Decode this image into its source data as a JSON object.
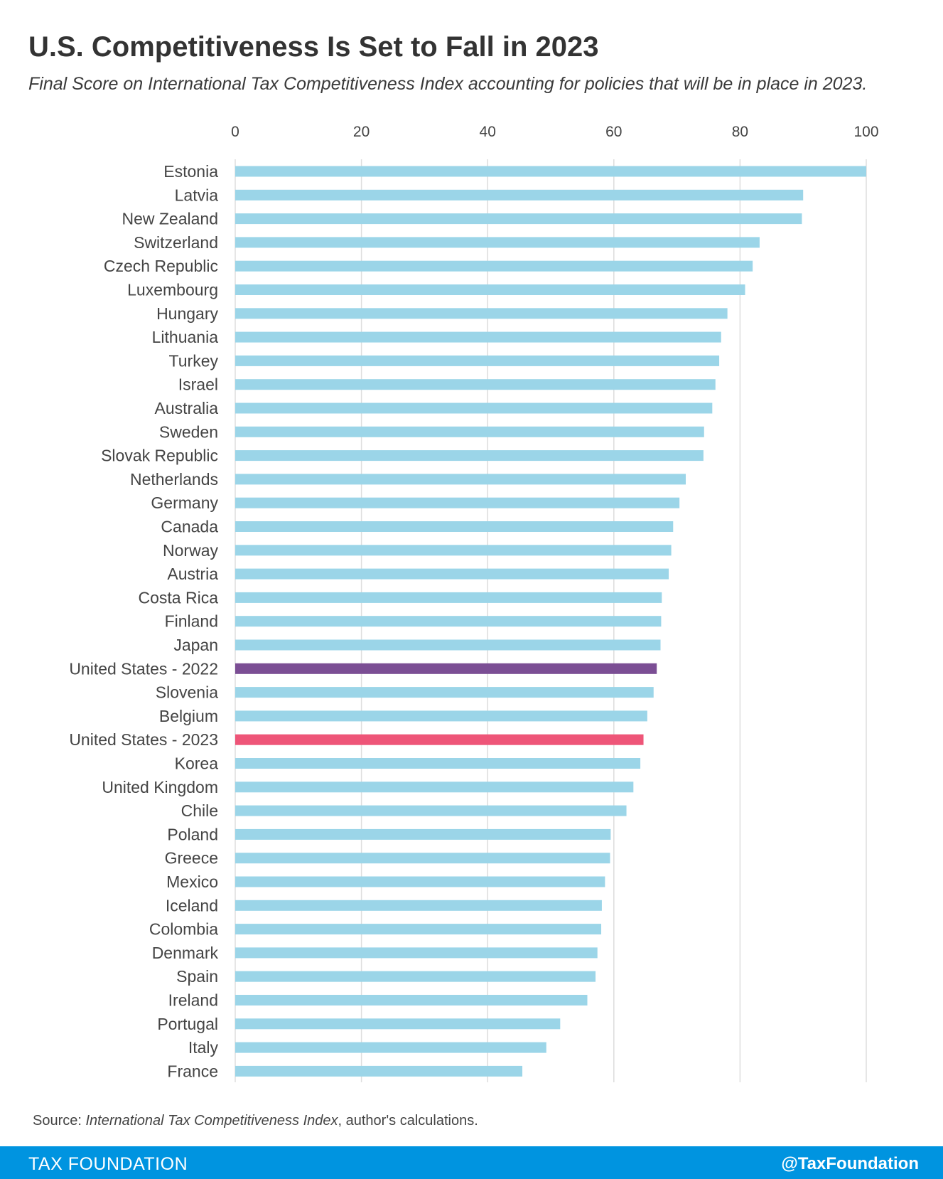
{
  "title": "U.S. Competitiveness Is Set to Fall in 2023",
  "subtitle": "Final Score on International Tax Competitiveness Index accounting for policies that will be in place in 2023.",
  "source": {
    "prefix": "Source: ",
    "italic": "International Tax Competitiveness Index",
    "suffix": ", author's calculations."
  },
  "footer": {
    "brand": "TAX FOUNDATION",
    "handle": "@TaxFoundation"
  },
  "colors": {
    "default_bar": "#9bd5e8",
    "us_2022": "#7b4e94",
    "us_2023": "#ee5578",
    "gridline": "#dddddd"
  },
  "chart_data": {
    "type": "bar",
    "orientation": "horizontal",
    "xlim": [
      0,
      100
    ],
    "xticks": [
      0,
      20,
      40,
      60,
      80,
      100
    ],
    "grid": true,
    "categories": [
      "Estonia",
      "Latvia",
      "New Zealand",
      "Switzerland",
      "Czech Republic",
      "Luxembourg",
      "Hungary",
      "Lithuania",
      "Turkey",
      "Israel",
      "Australia",
      "Sweden",
      "Slovak Republic",
      "Netherlands",
      "Germany",
      "Canada",
      "Norway",
      "Austria",
      "Costa Rica",
      "Finland",
      "Japan",
      "United States - 2022",
      "Slovenia",
      "Belgium",
      "United States - 2023",
      "Korea",
      "United Kingdom",
      "Chile",
      "Poland",
      "Greece",
      "Mexico",
      "Iceland",
      "Colombia",
      "Denmark",
      "Spain",
      "Ireland",
      "Portugal",
      "Italy",
      "France"
    ],
    "values": [
      100,
      90.0,
      89.8,
      83.1,
      82.0,
      80.8,
      78.0,
      77.0,
      76.7,
      76.1,
      75.6,
      74.3,
      74.2,
      71.4,
      70.4,
      69.4,
      69.1,
      68.7,
      67.6,
      67.5,
      67.4,
      66.8,
      66.3,
      65.3,
      64.7,
      64.2,
      63.1,
      62.0,
      59.5,
      59.4,
      58.6,
      58.1,
      58.0,
      57.4,
      57.1,
      55.8,
      51.5,
      49.3,
      45.5
    ],
    "highlights": {
      "United States - 2022": "us_2022",
      "United States - 2023": "us_2023"
    }
  }
}
